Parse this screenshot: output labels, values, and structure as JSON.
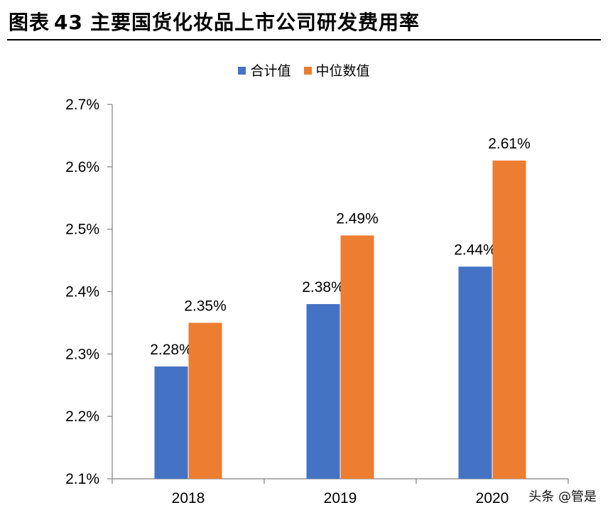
{
  "header": {
    "figure_label": "图表",
    "figure_number": "43",
    "title": "主要国货化妆品上市公司研发费用率"
  },
  "watermark": "头条 @管是",
  "colors": {
    "series_1": "#4472C4",
    "series_2": "#ED7D31",
    "axis": "#808080"
  },
  "chart_data": {
    "type": "bar",
    "categories": [
      "2018",
      "2019",
      "2020"
    ],
    "series": [
      {
        "name": "合计值",
        "values": [
          2.28,
          2.38,
          2.44
        ],
        "labels": [
          "2.28%",
          "2.38%",
          "2.44%"
        ]
      },
      {
        "name": "中位数值",
        "values": [
          2.35,
          2.49,
          2.61
        ],
        "labels": [
          "2.35%",
          "2.49%",
          "2.61%"
        ]
      }
    ],
    "yticks": [
      "2.1%",
      "2.2%",
      "2.3%",
      "2.4%",
      "2.5%",
      "2.6%",
      "2.7%"
    ],
    "ytick_values": [
      2.1,
      2.2,
      2.3,
      2.4,
      2.5,
      2.6,
      2.7
    ],
    "ylim": [
      2.1,
      2.7
    ],
    "legend": "top-center",
    "grid": false
  }
}
